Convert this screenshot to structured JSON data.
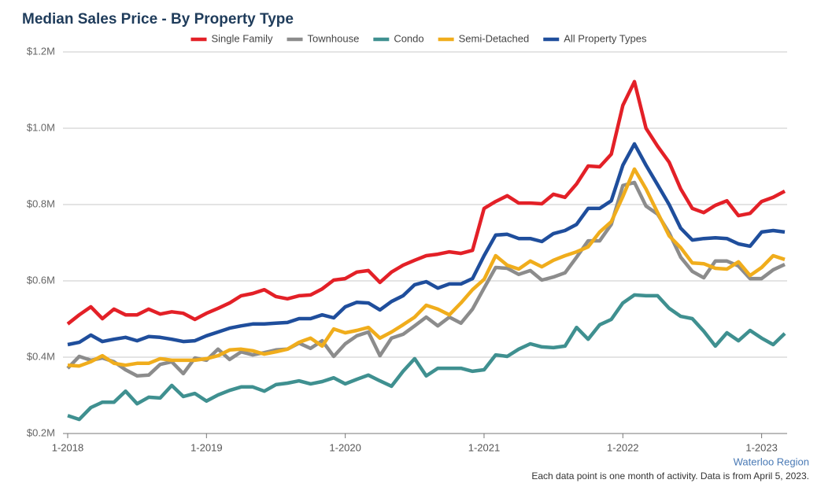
{
  "chart_data": {
    "type": "line",
    "title": "Median Sales Price - By Property Type",
    "region": "Waterloo Region",
    "note": "Each data point is one month of activity. Data is from April 5, 2023.",
    "categories": [
      "1-2018",
      null,
      null,
      null,
      null,
      null,
      null,
      null,
      null,
      null,
      null,
      null,
      "1-2019",
      null,
      null,
      null,
      null,
      null,
      null,
      null,
      null,
      null,
      null,
      null,
      "1-2020",
      null,
      null,
      null,
      null,
      null,
      null,
      null,
      null,
      null,
      null,
      null,
      "1-2021",
      null,
      null,
      null,
      null,
      null,
      null,
      null,
      null,
      null,
      null,
      null,
      "1-2022",
      null,
      null,
      null,
      null,
      null,
      null,
      null,
      null,
      null,
      null,
      null,
      "1-2023",
      null,
      null
    ],
    "ylim": [
      200000,
      1200000
    ],
    "yticks": [
      {
        "value": 200000,
        "label": "$0.2M"
      },
      {
        "value": 400000,
        "label": "$0.4M"
      },
      {
        "value": 600000,
        "label": "$0.6M"
      },
      {
        "value": 800000,
        "label": "$0.8M"
      },
      {
        "value": 1000000,
        "label": "$1.0M"
      },
      {
        "value": 1200000,
        "label": "$1.2M"
      }
    ],
    "grid": true,
    "series": [
      {
        "name": "Single Family",
        "color": "#e32027",
        "values": [
          487000,
          511000,
          532000,
          501000,
          526000,
          511000,
          511000,
          526000,
          513000,
          519000,
          515000,
          499000,
          515000,
          528000,
          542000,
          561000,
          567000,
          577000,
          559000,
          553000,
          561000,
          563000,
          579000,
          602000,
          606000,
          623000,
          627000,
          596000,
          623000,
          641000,
          654000,
          666000,
          670000,
          676000,
          672000,
          680000,
          790000,
          808000,
          823000,
          804000,
          804000,
          802000,
          827000,
          819000,
          854000,
          901000,
          899000,
          932000,
          1060000,
          1122000,
          1000000,
          953000,
          911000,
          841000,
          790000,
          779000,
          798000,
          810000,
          771000,
          777000,
          808000,
          819000,
          835000
        ]
      },
      {
        "name": "Townhouse",
        "color": "#8c8c8c",
        "values": [
          371000,
          402000,
          392000,
          398000,
          388000,
          367000,
          351000,
          353000,
          381000,
          388000,
          357000,
          398000,
          392000,
          421000,
          394000,
          414000,
          406000,
          412000,
          419000,
          421000,
          437000,
          423000,
          443000,
          402000,
          435000,
          456000,
          466000,
          404000,
          450000,
          460000,
          482000,
          505000,
          482000,
          505000,
          489000,
          526000,
          581000,
          635000,
          633000,
          617000,
          627000,
          602000,
          610000,
          621000,
          662000,
          705000,
          705000,
          748000,
          850000,
          858000,
          796000,
          775000,
          726000,
          662000,
          625000,
          608000,
          652000,
          652000,
          639000,
          606000,
          606000,
          629000,
          643000
        ]
      },
      {
        "name": "Condo",
        "color": "#3f9090",
        "values": [
          247000,
          237000,
          268000,
          282000,
          282000,
          311000,
          278000,
          295000,
          293000,
          326000,
          297000,
          305000,
          285000,
          301000,
          313000,
          322000,
          322000,
          311000,
          328000,
          332000,
          338000,
          330000,
          336000,
          346000,
          330000,
          342000,
          353000,
          338000,
          324000,
          363000,
          396000,
          351000,
          371000,
          371000,
          371000,
          363000,
          367000,
          406000,
          402000,
          421000,
          435000,
          427000,
          425000,
          429000,
          478000,
          447000,
          485000,
          499000,
          542000,
          563000,
          561000,
          561000,
          528000,
          507000,
          501000,
          468000,
          429000,
          464000,
          443000,
          470000,
          450000,
          433000,
          462000
        ]
      },
      {
        "name": "Semi-Detached",
        "color": "#f0ad1c",
        "values": [
          379000,
          377000,
          388000,
          404000,
          384000,
          379000,
          384000,
          384000,
          396000,
          392000,
          392000,
          392000,
          396000,
          404000,
          419000,
          421000,
          417000,
          408000,
          414000,
          421000,
          439000,
          450000,
          429000,
          474000,
          464000,
          470000,
          478000,
          450000,
          466000,
          485000,
          505000,
          536000,
          526000,
          511000,
          542000,
          577000,
          604000,
          666000,
          641000,
          631000,
          652000,
          637000,
          654000,
          666000,
          676000,
          689000,
          728000,
          755000,
          821000,
          893000,
          841000,
          779000,
          718000,
          687000,
          647000,
          645000,
          633000,
          631000,
          650000,
          614000,
          635000,
          666000,
          656000
        ]
      },
      {
        "name": "All Property Types",
        "color": "#1f4e9c",
        "values": [
          433000,
          439000,
          458000,
          441000,
          447000,
          452000,
          443000,
          454000,
          452000,
          447000,
          441000,
          443000,
          456000,
          466000,
          476000,
          482000,
          487000,
          487000,
          489000,
          491000,
          501000,
          501000,
          511000,
          503000,
          532000,
          544000,
          542000,
          524000,
          546000,
          561000,
          590000,
          598000,
          581000,
          592000,
          592000,
          606000,
          666000,
          720000,
          722000,
          711000,
          711000,
          703000,
          724000,
          732000,
          748000,
          790000,
          790000,
          810000,
          903000,
          959000,
          903000,
          852000,
          800000,
          738000,
          707000,
          711000,
          713000,
          711000,
          697000,
          691000,
          728000,
          732000,
          728000
        ]
      }
    ]
  }
}
